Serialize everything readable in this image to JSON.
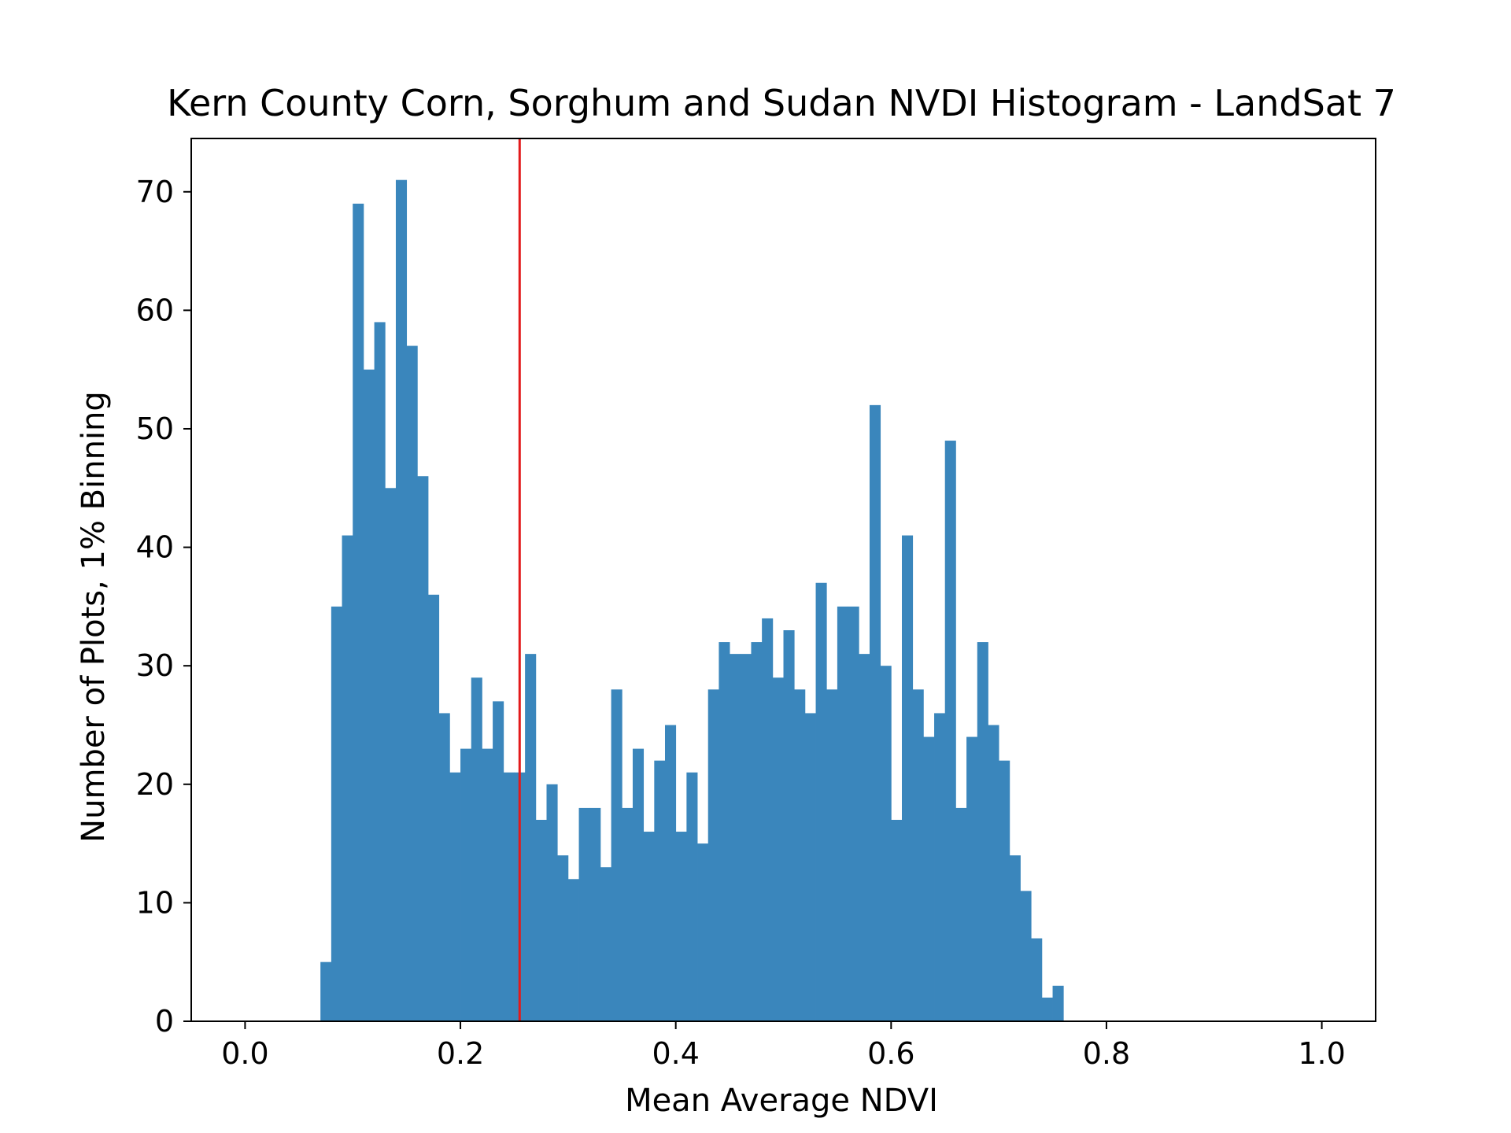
{
  "chart_data": {
    "type": "bar",
    "title": "Kern County Corn, Sorghum and Sudan NVDI Histogram - LandSat 7",
    "xlabel": "Mean Average NDVI",
    "ylabel": "Number of Plots, 1% Binning",
    "xlim": [
      -0.05,
      1.05
    ],
    "ylim": [
      0,
      74.5
    ],
    "xticks": [
      0.0,
      0.2,
      0.4,
      0.6,
      0.8,
      1.0
    ],
    "xtick_labels": [
      "0.0",
      "0.2",
      "0.4",
      "0.6",
      "0.8",
      "1.0"
    ],
    "yticks": [
      0,
      10,
      20,
      30,
      40,
      50,
      60,
      70
    ],
    "ytick_labels": [
      "0",
      "10",
      "20",
      "30",
      "40",
      "50",
      "60",
      "70"
    ],
    "bin_start": 0.07,
    "bin_width": 0.01,
    "values": [
      5,
      35,
      41,
      69,
      55,
      59,
      45,
      71,
      57,
      46,
      36,
      26,
      21,
      23,
      29,
      23,
      27,
      21,
      21,
      31,
      17,
      20,
      14,
      12,
      18,
      18,
      13,
      28,
      18,
      23,
      16,
      22,
      25,
      16,
      21,
      15,
      28,
      32,
      31,
      31,
      32,
      34,
      29,
      33,
      28,
      26,
      37,
      28,
      35,
      35,
      31,
      52,
      30,
      17,
      41,
      28,
      24,
      26,
      49,
      18,
      24,
      32,
      25,
      22,
      14,
      11,
      7,
      2,
      3
    ],
    "bar_color": "#3a86bc",
    "vline": {
      "x": 0.255,
      "color": "#e31a1c"
    },
    "grid": false
  }
}
